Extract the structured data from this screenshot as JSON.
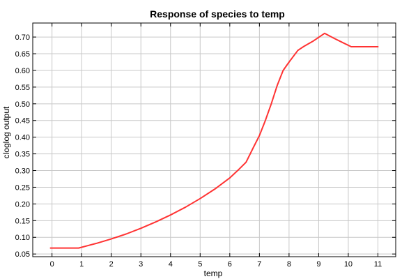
{
  "chart_data": {
    "type": "line",
    "title": "Response of species to temp",
    "xlabel": "temp",
    "ylabel": "cloglog output",
    "xlim": [
      -0.65,
      11.6
    ],
    "ylim": [
      0.042,
      0.742
    ],
    "xticks": [
      0,
      1,
      2,
      3,
      4,
      5,
      6,
      7,
      8,
      9,
      10,
      11
    ],
    "yticks": [
      0.05,
      0.1,
      0.15,
      0.2,
      0.25,
      0.3,
      0.35,
      0.4,
      0.45,
      0.5,
      0.55,
      0.6,
      0.65,
      0.7
    ],
    "grid": true,
    "series": [
      {
        "color": "#ff3333",
        "x": [
          -0.05,
          0.9,
          1.5,
          2.0,
          2.5,
          3.0,
          3.5,
          4.0,
          4.5,
          5.0,
          5.5,
          6.0,
          6.3,
          6.55,
          6.8,
          7.0,
          7.2,
          7.4,
          7.6,
          7.8,
          8.0,
          8.3,
          8.5,
          8.8,
          9.2,
          9.5,
          9.8,
          10.1,
          10.5,
          11.0
        ],
        "y": [
          0.068,
          0.068,
          0.082,
          0.095,
          0.11,
          0.127,
          0.146,
          0.167,
          0.19,
          0.216,
          0.245,
          0.278,
          0.303,
          0.325,
          0.37,
          0.405,
          0.45,
          0.5,
          0.555,
          0.6,
          0.625,
          0.66,
          0.672,
          0.687,
          0.711,
          0.697,
          0.684,
          0.671,
          0.671,
          0.671
        ]
      }
    ]
  }
}
